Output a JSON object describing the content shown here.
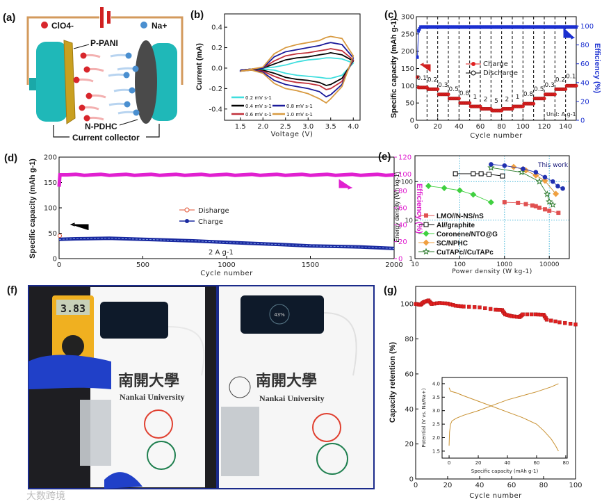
{
  "panel_labels": {
    "a": "(a)",
    "b": "(b)",
    "c": "(c)",
    "d": "(d)",
    "e": "(e)",
    "f": "(f)",
    "g": "(g)"
  },
  "diagram_a": {
    "anion_label": "ClO4-",
    "cation_label": "Na+",
    "cathode_label": "P-PANI",
    "anode_label": "N-PDHC",
    "collector_label": "Current collector",
    "colors": {
      "wire": "#d39a5c",
      "collector": "#1fb8b8",
      "cathode": "#c9a020",
      "anode": "#4a4a4a",
      "anion": "#d8262c",
      "cation": "#4a8fd0",
      "battery": "#d02020"
    }
  },
  "photos_f": {
    "multimeter_reading": "3.83",
    "paper_text_cn": "南開大學",
    "paper_text_en": "Nankai University",
    "phone_charging_text": "43%",
    "frame_color": "#1a2a8a"
  },
  "watermark": "大数跨境",
  "chart_data": [
    {
      "id": "b",
      "type": "line",
      "xlabel": "Voltage (V)",
      "ylabel": "Current (mA)",
      "xlim": [
        1.15,
        4.15
      ],
      "ylim": [
        -0.51,
        0.53
      ],
      "xticks": [
        "1.5",
        "2.0",
        "2.5",
        "3.0",
        "3.5",
        "4.0"
      ],
      "yticks": [
        "-0.4",
        "-0.2",
        "0.0",
        "0.2",
        "0.4"
      ],
      "voltage": [
        1.5,
        1.75,
        2.0,
        2.25,
        2.5,
        2.75,
        3.0,
        3.25,
        3.4,
        3.5,
        3.75,
        4.0
      ],
      "series": [
        {
          "name": "0.2 mV s-1",
          "color": "#3fdede",
          "upper": [
            -0.02,
            -0.01,
            0.0,
            0.01,
            0.03,
            0.06,
            0.08,
            0.09,
            0.1,
            0.1,
            0.09,
            0.05
          ],
          "lower": [
            -0.02,
            -0.01,
            -0.01,
            -0.02,
            -0.05,
            -0.07,
            -0.08,
            -0.09,
            -0.1,
            -0.1,
            -0.07,
            0.05
          ]
        },
        {
          "name": "0.4 mV s-1",
          "color": "#000000",
          "upper": [
            -0.02,
            -0.01,
            0.0,
            0.04,
            0.08,
            0.1,
            0.11,
            0.13,
            0.14,
            0.15,
            0.13,
            0.07
          ],
          "lower": [
            -0.02,
            -0.02,
            -0.02,
            -0.05,
            -0.09,
            -0.11,
            -0.12,
            -0.14,
            -0.17,
            -0.16,
            -0.1,
            0.07
          ]
        },
        {
          "name": "0.6 mV s-1",
          "color": "#c0303a",
          "upper": [
            -0.02,
            -0.01,
            0.0,
            0.07,
            0.12,
            0.14,
            0.15,
            0.17,
            0.18,
            0.19,
            0.17,
            0.08
          ],
          "lower": [
            -0.02,
            -0.02,
            -0.03,
            -0.08,
            -0.12,
            -0.14,
            -0.15,
            -0.17,
            -0.21,
            -0.2,
            -0.13,
            0.08
          ]
        },
        {
          "name": "0.8 mV s-1",
          "color": "#1a1a9a",
          "upper": [
            -0.02,
            -0.01,
            0.0,
            0.11,
            0.16,
            0.18,
            0.2,
            0.22,
            0.24,
            0.25,
            0.23,
            0.1
          ],
          "lower": [
            -0.03,
            -0.02,
            -0.04,
            -0.12,
            -0.16,
            -0.18,
            -0.2,
            -0.23,
            -0.28,
            -0.26,
            -0.16,
            0.1
          ]
        },
        {
          "name": "1.0 mV s-1",
          "color": "#d89a40",
          "upper": [
            -0.03,
            -0.01,
            0.01,
            0.14,
            0.2,
            0.23,
            0.25,
            0.27,
            0.3,
            0.31,
            0.29,
            0.12
          ],
          "lower": [
            -0.03,
            -0.02,
            -0.05,
            -0.15,
            -0.2,
            -0.22,
            -0.25,
            -0.3,
            -0.34,
            -0.3,
            -0.18,
            0.12
          ]
        }
      ]
    },
    {
      "id": "c",
      "type": "scatter",
      "xlabel": "Cycle number",
      "ylabel": "Specific capacity (mAh g-1)",
      "y2label": "Efficiency (%)",
      "xlim": [
        0,
        150
      ],
      "ylim": [
        0,
        300
      ],
      "y2lim": [
        0,
        110
      ],
      "xticks": [
        "0",
        "20",
        "40",
        "60",
        "80",
        "100",
        "120",
        "140"
      ],
      "yticks": [
        "0",
        "50",
        "100",
        "150",
        "200",
        "250",
        "300"
      ],
      "y2ticks": [
        "0",
        "20",
        "40",
        "60",
        "80",
        "100"
      ],
      "rate_boundaries_cycles": [
        10,
        20,
        30,
        40,
        50,
        60,
        70,
        80,
        90,
        100,
        110,
        120,
        130,
        140
      ],
      "rates": [
        "0.1",
        "0.2",
        "0.3",
        "0.5",
        "0.8",
        "1",
        "2",
        "5",
        "2",
        "1",
        "0.8",
        "0.5",
        "0.3",
        "0.2",
        "0.1"
      ],
      "capacity_per_rate": [
        95,
        90,
        75,
        63,
        50,
        40,
        33,
        28,
        33,
        40,
        48,
        63,
        75,
        90,
        100
      ],
      "first_cycle_charge": 125,
      "efficiency_first_cycles": [
        67,
        95,
        97
      ],
      "efficiency_steady": 99,
      "unit_note": "Unit: A g-1",
      "legend": [
        "Charge",
        "Discharge"
      ],
      "colors": {
        "charge": "#e02020",
        "efficiency": "#1a2fd0"
      }
    },
    {
      "id": "d",
      "type": "scatter",
      "xlabel": "Cycle number",
      "ylabel": "Specific capacity (mAh g-1)",
      "y2label": "Efficiency (%)",
      "xlim": [
        0,
        2000
      ],
      "ylim": [
        0,
        200
      ],
      "y2lim": [
        0,
        120
      ],
      "xticks": [
        "0",
        "500",
        "1000",
        "1500",
        "2000"
      ],
      "yticks": [
        "0",
        "50",
        "100",
        "150",
        "200"
      ],
      "y2ticks": [
        "0",
        "20",
        "40",
        "60",
        "80",
        "100",
        "120"
      ],
      "charge": {
        "x": [
          0,
          100,
          300,
          500,
          800,
          1000,
          1300,
          1500,
          1800,
          2000
        ],
        "y": [
          38,
          39,
          40,
          38,
          35,
          32,
          28,
          25,
          23,
          20
        ]
      },
      "discharge_first": 45,
      "efficiency": {
        "x": [
          0,
          5,
          2000
        ],
        "y": [
          85,
          99,
          99
        ]
      },
      "current_density": "2 A g-1",
      "legend": [
        "Disharge",
        "Charge"
      ],
      "colors": {
        "charge": "#1a2aa0",
        "discharge": "#e05030",
        "efficiency": "#e020d0"
      }
    },
    {
      "id": "e",
      "type": "scatter",
      "xscale": "log",
      "yscale": "log",
      "xlabel": "Power density (W kg-1)",
      "ylabel": "Energy density (Wh kg-1)",
      "xlim": [
        10,
        28000
      ],
      "ylim": [
        1,
        470
      ],
      "xticks": [
        "10",
        "100",
        "1000",
        "10000"
      ],
      "yticks": [
        "1",
        "10",
        "100"
      ],
      "grid": true,
      "annotation": "This work",
      "series": [
        {
          "name": "LMO//N-NS/nS",
          "color": "#e05050",
          "marker": "square",
          "x": [
            1000,
            2000,
            3000,
            4200,
            5000,
            6000,
            8000,
            10000,
            16000
          ],
          "y": [
            29,
            28,
            26,
            24,
            23,
            21,
            19,
            17.5,
            15.5
          ]
        },
        {
          "name": "Al//graphite",
          "color": "#000000",
          "marker": "open-square",
          "x": [
            80,
            200,
            300,
            450,
            900
          ],
          "y": [
            160,
            160,
            160,
            155,
            140
          ]
        },
        {
          "name": "Coronene/NTO@G",
          "color": "#40d040",
          "marker": "diamond",
          "x": [
            20,
            45,
            100,
            200,
            500
          ],
          "y": [
            77,
            68,
            59,
            46,
            29
          ]
        },
        {
          "name": "SC/NPHC",
          "color": "#f0a040",
          "marker": "diamond",
          "x": [
            1600,
            2600,
            3000,
            5000,
            8000,
            14000
          ],
          "y": [
            240,
            210,
            195,
            145,
            105,
            48
          ]
        },
        {
          "name": "CuTAPc//CuTAPc",
          "color": "#2a7a2a",
          "marker": "star",
          "x": [
            500,
            2400,
            6000,
            9000,
            10000,
            12000
          ],
          "y": [
            230,
            175,
            100,
            47,
            30,
            25
          ]
        },
        {
          "name": "This work",
          "color": "#2030b0",
          "marker": "circle",
          "x": [
            500,
            1000,
            2600,
            5000,
            8000,
            12000,
            15500,
            20000
          ],
          "y": [
            280,
            260,
            215,
            175,
            130,
            100,
            76,
            66
          ]
        }
      ]
    },
    {
      "id": "g",
      "type": "scatter",
      "xlabel": "Cycle number",
      "ylabel": "Capacity retention (%)",
      "xlim": [
        0,
        100
      ],
      "ylim": [
        0,
        110
      ],
      "xticks": [
        "0",
        "20",
        "40",
        "60",
        "80",
        "100"
      ],
      "yticks": [
        "0",
        "20",
        "40",
        "60",
        "80",
        "100"
      ],
      "retention": {
        "x": [
          0,
          3,
          5,
          8,
          10,
          15,
          20,
          25,
          30,
          40,
          50,
          54,
          56,
          60,
          65,
          67,
          75,
          80,
          82,
          90,
          100
        ],
        "y": [
          100,
          99.5,
          101,
          102,
          100,
          100.5,
          100.2,
          99,
          98.5,
          98,
          96.7,
          96.5,
          94,
          93,
          92.5,
          94,
          94,
          93.8,
          91,
          89.5,
          88.3
        ]
      },
      "color": "#e02020",
      "inset": {
        "type": "line",
        "xlabel": "Specific capacity (mAh g-1)",
        "ylabel": "Potential (V vs. Na/Na+)",
        "xlim": [
          -4.8,
          81
        ],
        "ylim": [
          1.24,
          4.23
        ],
        "xticks": [
          "0",
          "20",
          "40",
          "60",
          "80"
        ],
        "yticks": [
          "1.5",
          "2.0",
          "2.5",
          "3.0",
          "3.5",
          "4.0"
        ],
        "charge": {
          "x": [
            0,
            0.3,
            1,
            2,
            5,
            10,
            20,
            30,
            40,
            50,
            60,
            70,
            75
          ],
          "y": [
            1.7,
            2.2,
            2.5,
            2.62,
            2.72,
            2.83,
            3.0,
            3.2,
            3.4,
            3.55,
            3.7,
            3.88,
            4.0
          ]
        },
        "discharge": {
          "x": [
            0,
            1,
            5,
            10,
            20,
            30,
            40,
            50,
            60,
            65,
            70,
            73,
            75
          ],
          "y": [
            3.85,
            3.72,
            3.66,
            3.55,
            3.35,
            3.15,
            2.95,
            2.75,
            2.5,
            2.25,
            1.95,
            1.7,
            1.5
          ]
        },
        "color": "#c89030"
      }
    }
  ]
}
